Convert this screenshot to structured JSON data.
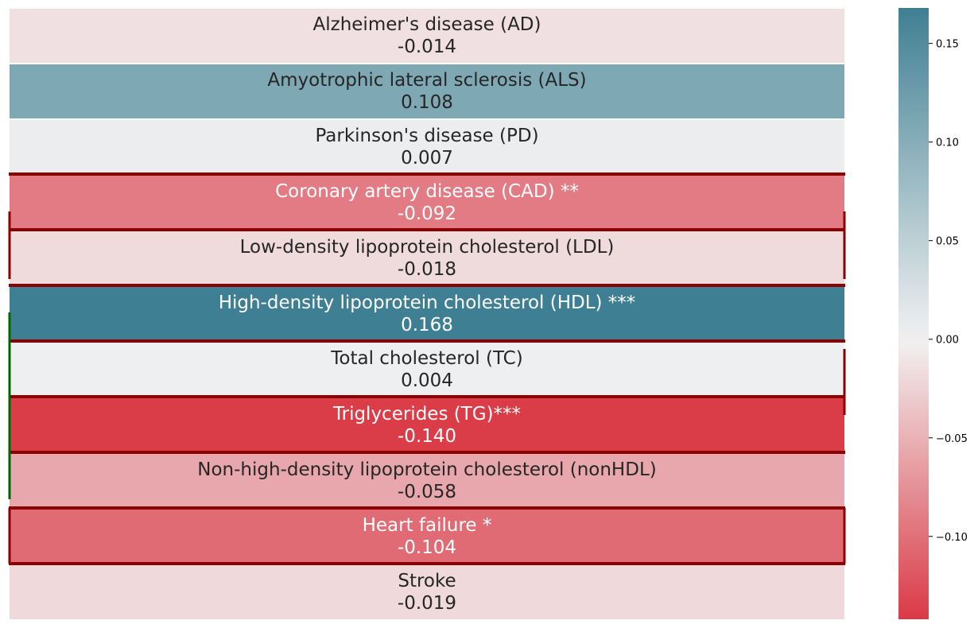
{
  "chart_data": {
    "type": "heatmap",
    "rows": [
      {
        "label": "Alzheimer's disease (AD)",
        "value": -0.014,
        "value_text": "-0.014"
      },
      {
        "label": "Amyotrophic lateral sclerosis (ALS)",
        "value": 0.108,
        "value_text": "0.108"
      },
      {
        "label": "Parkinson's disease (PD)",
        "value": 0.007,
        "value_text": "0.007"
      },
      {
        "label": "Coronary artery disease (CAD) **",
        "value": -0.092,
        "value_text": "-0.092"
      },
      {
        "label": "Low-density lipoprotein cholesterol (LDL)",
        "value": -0.018,
        "value_text": "-0.018"
      },
      {
        "label": "High-density lipoprotein cholesterol (HDL) ***",
        "value": 0.168,
        "value_text": "0.168"
      },
      {
        "label": "Total cholesterol (TC)",
        "value": 0.004,
        "value_text": "0.004"
      },
      {
        "label": "Triglycerides (TG)***",
        "value": -0.14,
        "value_text": "-0.140"
      },
      {
        "label": "Non-high-density lipoprotein cholesterol (nonHDL)",
        "value": -0.058,
        "value_text": "-0.058"
      },
      {
        "label": "Heart failure *",
        "value": -0.104,
        "value_text": "-0.104"
      },
      {
        "label": "Stroke",
        "value": -0.019,
        "value_text": "-0.019"
      }
    ],
    "colorbar": {
      "range": [
        -0.142,
        0.168
      ],
      "ticks": [
        {
          "value": 0.15,
          "label": "0.15"
        },
        {
          "value": 0.1,
          "label": "0.10"
        },
        {
          "value": 0.05,
          "label": "0.05"
        },
        {
          "value": 0.0,
          "label": "0.00"
        },
        {
          "value": -0.05,
          "label": "−0.05"
        },
        {
          "value": -0.1,
          "label": "−0.10"
        }
      ],
      "colors": {
        "negative": "#da3a46",
        "neutral": "#f2f2f2",
        "positive": "#3f7f93"
      }
    },
    "highlight_color_red": "#8b0000",
    "highlight_color_green": "#006400",
    "text_color_dark": "#262626",
    "text_color_light": "#ffffff"
  }
}
